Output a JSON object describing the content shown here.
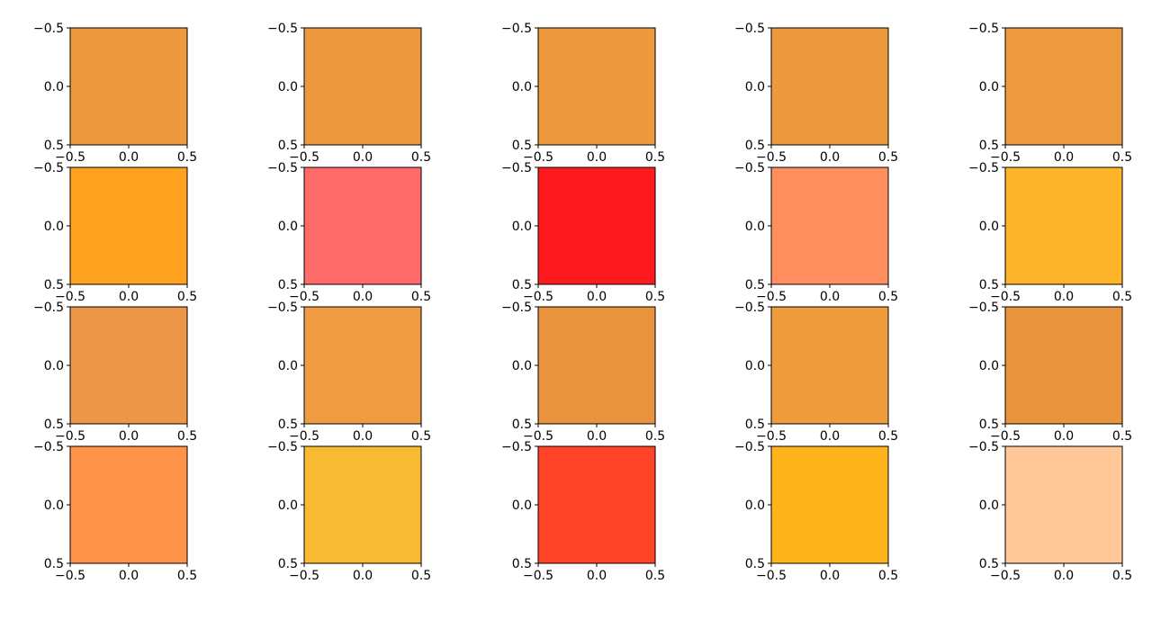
{
  "chart_data": {
    "type": "heatmap",
    "layout": {
      "rows": 4,
      "cols": 5
    },
    "axis": {
      "x_ticks": [
        "−0.5",
        "0.0",
        "0.5"
      ],
      "y_ticks": [
        "−0.5",
        "0.0",
        "0.5"
      ],
      "xlim": [
        -0.5,
        0.5
      ],
      "ylim": [
        0.5,
        -0.5
      ],
      "grid": false
    },
    "cells": [
      [
        "#ED9A3E",
        "#ED9A3E",
        "#ED9A3E",
        "#ED9A3E",
        "#EE9A3F"
      ],
      [
        "#FEA21F",
        "#FF6A6A",
        "#FE1B20",
        "#FF8F5E",
        "#FFB52A"
      ],
      [
        "#EB9747",
        "#EF9C43",
        "#EA933E",
        "#EF9C3C",
        "#EA953E"
      ],
      [
        "#FF9448",
        "#F9BA33",
        "#FF4326",
        "#FFB41B",
        "#FFC896"
      ]
    ],
    "title": ""
  }
}
